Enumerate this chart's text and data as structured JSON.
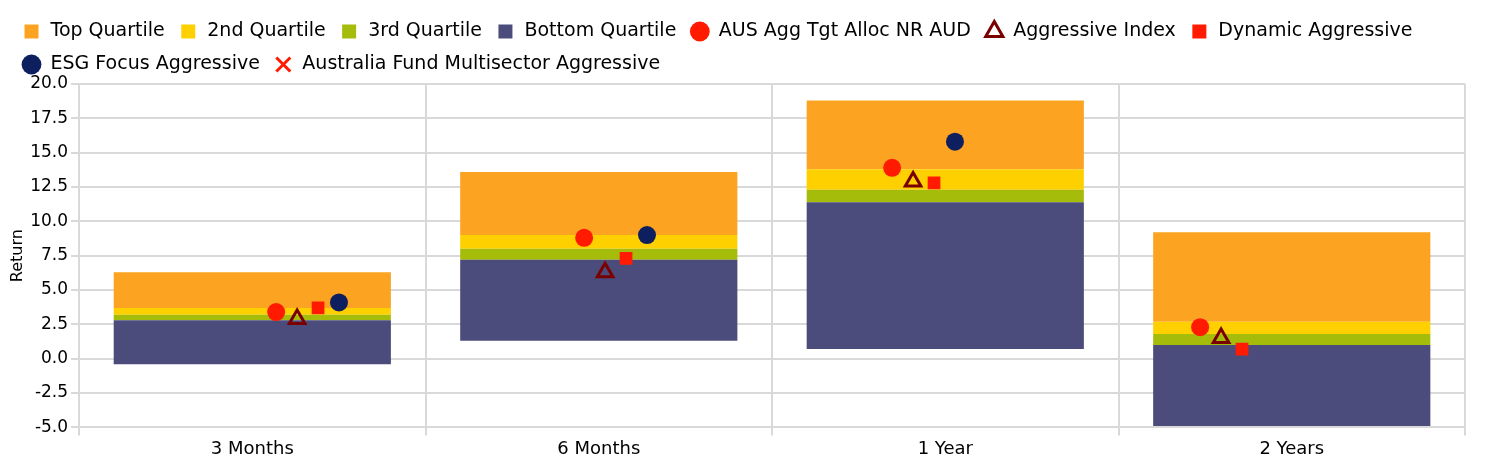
{
  "chart_data": {
    "type": "bar",
    "ylabel": "Return",
    "categories": [
      "3 Months",
      "6 Months",
      "1 Year",
      "2 Years"
    ],
    "series": [
      {
        "name": "Bottom Quartile",
        "color": "#4b4c7c",
        "base": [
          -0.4,
          1.3,
          0.7,
          -4.9
        ],
        "values": [
          3.2,
          5.9,
          10.7,
          5.9
        ]
      },
      {
        "name": "3rd Quartile",
        "color": "#a5bc0b",
        "base": [
          2.8,
          7.2,
          11.4,
          1.0
        ],
        "values": [
          0.4,
          0.8,
          0.9,
          0.8
        ]
      },
      {
        "name": "2nd Quartile",
        "color": "#ffd000",
        "base": [
          3.2,
          8.0,
          12.3,
          1.8
        ],
        "values": [
          0.5,
          1.0,
          1.5,
          0.9
        ]
      },
      {
        "name": "Top Quartile",
        "color": "#fca421",
        "base": [
          3.7,
          9.0,
          13.8,
          2.7
        ],
        "values": [
          2.6,
          4.6,
          5.0,
          6.5
        ]
      },
      {
        "name": "AUS Agg Tgt Alloc NR AUD",
        "type": "scatter",
        "marker": "circle",
        "color": "#ff1a00",
        "x": [
          "3 Months",
          "6 Months",
          "1 Year",
          "2 Years"
        ],
        "values": [
          3.4,
          8.8,
          13.9,
          2.3
        ]
      },
      {
        "name": "Aggressive Index",
        "type": "scatter",
        "marker": "triangle",
        "color": "#7a0000",
        "x": [
          "3 Months",
          "6 Months",
          "1 Year",
          "2 Years"
        ],
        "values": [
          2.9,
          6.3,
          12.9,
          1.5
        ]
      },
      {
        "name": "Dynamic Aggressive",
        "type": "scatter",
        "marker": "square",
        "color": "#ff1a00",
        "x": [
          "3 Months",
          "6 Months",
          "1 Year",
          "2 Years"
        ],
        "values": [
          3.7,
          7.3,
          12.8,
          0.7
        ]
      },
      {
        "name": "ESG Focus Aggressive",
        "type": "scatter",
        "marker": "circle",
        "color": "#0d1f5e",
        "x": [
          "3 Months",
          "6 Months",
          "1 Year"
        ],
        "values": [
          4.1,
          9.0,
          15.8
        ]
      },
      {
        "name": "Australia Fund Multisector Aggressive",
        "type": "scatter",
        "marker": "cross",
        "color": "#ff1a00",
        "x": [
          "3 Months",
          "6 Months",
          "1 Year",
          "2 Years"
        ],
        "values": [
          null,
          null,
          null,
          null
        ]
      }
    ],
    "ylim": [
      -5,
      20
    ],
    "yticks": [
      {
        "value": -5,
        "label": "-5.0"
      },
      {
        "value": -2.5,
        "label": "-2.5"
      },
      {
        "value": 0,
        "label": "0.0"
      },
      {
        "value": 2.5,
        "label": "2.5"
      },
      {
        "value": 5,
        "label": "5.0"
      },
      {
        "value": 7.5,
        "label": "7.5"
      },
      {
        "value": 10,
        "label": "10.0"
      },
      {
        "value": 12.5,
        "label": "12.5"
      },
      {
        "value": 15,
        "label": "15.0"
      },
      {
        "value": 17.5,
        "label": "17.5"
      },
      {
        "value": 20,
        "label": "20.0"
      }
    ],
    "grid": true,
    "legend": "top"
  }
}
